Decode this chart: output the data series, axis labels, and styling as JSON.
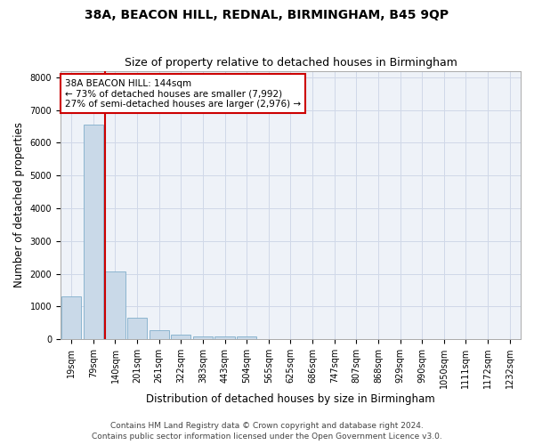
{
  "title": "38A, BEACON HILL, REDNAL, BIRMINGHAM, B45 9QP",
  "subtitle": "Size of property relative to detached houses in Birmingham",
  "xlabel": "Distribution of detached houses by size in Birmingham",
  "ylabel": "Number of detached properties",
  "categories": [
    "19sqm",
    "79sqm",
    "140sqm",
    "201sqm",
    "261sqm",
    "322sqm",
    "383sqm",
    "443sqm",
    "504sqm",
    "565sqm",
    "625sqm",
    "686sqm",
    "747sqm",
    "807sqm",
    "868sqm",
    "929sqm",
    "990sqm",
    "1050sqm",
    "1111sqm",
    "1172sqm",
    "1232sqm"
  ],
  "values": [
    1300,
    6550,
    2080,
    650,
    290,
    130,
    90,
    80,
    100,
    0,
    0,
    0,
    0,
    0,
    0,
    0,
    0,
    0,
    0,
    0,
    0
  ],
  "bar_color": "#c9d9e8",
  "bar_edge_color": "#7faecb",
  "highlight_bar_index": 2,
  "highlight_line_color": "#cc0000",
  "ylim": [
    0,
    8200
  ],
  "yticks": [
    0,
    1000,
    2000,
    3000,
    4000,
    5000,
    6000,
    7000,
    8000
  ],
  "annotation_text": "38A BEACON HILL: 144sqm\n← 73% of detached houses are smaller (7,992)\n27% of semi-detached houses are larger (2,976) →",
  "annotation_box_color": "#ffffff",
  "annotation_box_edge_color": "#cc0000",
  "grid_color": "#d0d8e8",
  "background_color": "#eef2f8",
  "footer_line1": "Contains HM Land Registry data © Crown copyright and database right 2024.",
  "footer_line2": "Contains public sector information licensed under the Open Government Licence v3.0.",
  "title_fontsize": 10,
  "subtitle_fontsize": 9,
  "axis_label_fontsize": 8.5,
  "tick_fontsize": 7,
  "annotation_fontsize": 7.5,
  "footer_fontsize": 6.5
}
